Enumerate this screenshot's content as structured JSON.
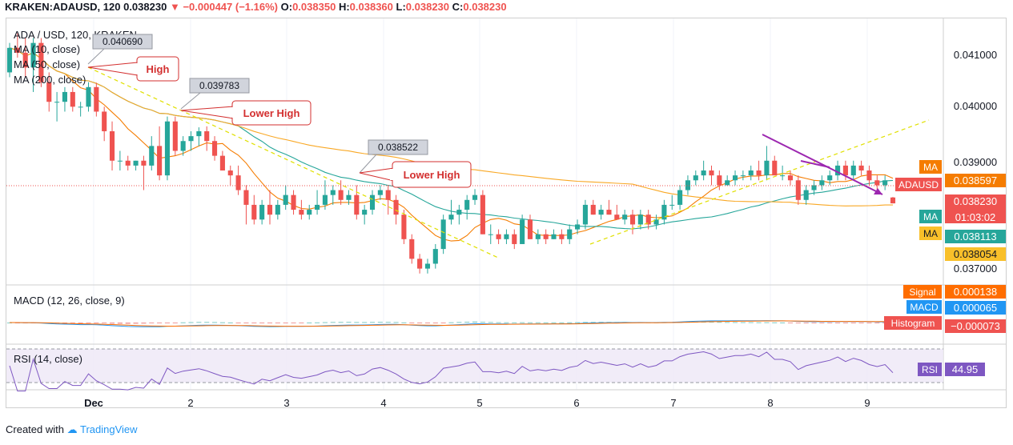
{
  "header": {
    "symbol": "KRAKEN:ADAUSD, 120",
    "price": "0.038230",
    "change": "−0.000447 (−1.16%)",
    "o_label": "O:",
    "o_value": "0.038350",
    "h_label": "H:",
    "h_value": "0.038360",
    "l_label": "L:",
    "l_value": "0.038230",
    "c_label": "C:",
    "c_value": "0.038230"
  },
  "legend": {
    "title": "ADA / USD, 120, KRAKEN",
    "ma1": "MA (10, close)",
    "ma2": "MA (50, close)",
    "ma3": "MA (200, close)"
  },
  "annotations": {
    "price1": "0.040690",
    "price2": "0.039783",
    "price3": "0.038522",
    "high": "High",
    "lower_high_1": "Lower High",
    "lower_high_2": "Lower High"
  },
  "price_axis": {
    "ticks": [
      "0.041000",
      "0.040000",
      "0.039000",
      "0.037000"
    ],
    "ma_tag": "MA",
    "ma_tag_value": "0.038597",
    "symbol_tag": "ADAUSD",
    "symbol_tag_value": "0.038230",
    "countdown": "01:03:02",
    "ma_tag_2": "MA",
    "ma_tag_2_value": "0.038113",
    "ma_tag_3": "MA",
    "ma_tag_3_value": "0.038054"
  },
  "macd": {
    "title": "MACD (12, 26, close, 9)",
    "signal_label": "Signal",
    "signal_value": "0.000138",
    "macd_label": "MACD",
    "macd_value": "0.000065",
    "hist_label": "Histogram",
    "hist_value": "−0.000073"
  },
  "rsi": {
    "title": "RSI (14, close)",
    "label": "RSI",
    "value": "44.95"
  },
  "x_axis": [
    "Dec",
    "2",
    "3",
    "4",
    "5",
    "6",
    "7",
    "8",
    "9"
  ],
  "footer": {
    "created_with": "Created with",
    "brand": "TradingView"
  },
  "colors": {
    "up": "#26a69a",
    "down": "#ef5350",
    "ma_fast": "#f57c00",
    "ma_mid": "#26a69a",
    "ma_slow": "#f9a825",
    "trend": "#e0e000",
    "arrow": "#9c27b0",
    "rsi_line": "#7e57c2",
    "macd_line": "#2196f3",
    "signal_line": "#ff6d00"
  },
  "chart_data": {
    "type": "candlestick",
    "interval": "120",
    "ylim": [
      0.0366,
      0.042
    ],
    "candles": [
      {
        "o": 0.0409,
        "h": 0.0415,
        "l": 0.0408,
        "c": 0.0414
      },
      {
        "o": 0.0414,
        "h": 0.0417,
        "l": 0.0412,
        "c": 0.0413
      },
      {
        "o": 0.0413,
        "h": 0.0416,
        "l": 0.0408,
        "c": 0.041
      },
      {
        "o": 0.041,
        "h": 0.0416,
        "l": 0.0405,
        "c": 0.0415
      },
      {
        "o": 0.0415,
        "h": 0.0416,
        "l": 0.0406,
        "c": 0.0407
      },
      {
        "o": 0.0407,
        "h": 0.0409,
        "l": 0.0401,
        "c": 0.0403
      },
      {
        "o": 0.0403,
        "h": 0.0405,
        "l": 0.0399,
        "c": 0.0403
      },
      {
        "o": 0.0403,
        "h": 0.0406,
        "l": 0.0401,
        "c": 0.0405
      },
      {
        "o": 0.0405,
        "h": 0.0406,
        "l": 0.0401,
        "c": 0.0402
      },
      {
        "o": 0.0402,
        "h": 0.0403,
        "l": 0.04,
        "c": 0.0402
      },
      {
        "o": 0.0402,
        "h": 0.0407,
        "l": 0.0401,
        "c": 0.0406
      },
      {
        "o": 0.0406,
        "h": 0.04069,
        "l": 0.04,
        "c": 0.0401
      },
      {
        "o": 0.0401,
        "h": 0.0402,
        "l": 0.0395,
        "c": 0.0397
      },
      {
        "o": 0.0397,
        "h": 0.0399,
        "l": 0.0389,
        "c": 0.0391
      },
      {
        "o": 0.0391,
        "h": 0.0393,
        "l": 0.0389,
        "c": 0.0391
      },
      {
        "o": 0.0391,
        "h": 0.0392,
        "l": 0.0389,
        "c": 0.039
      },
      {
        "o": 0.039,
        "h": 0.0391,
        "l": 0.0389,
        "c": 0.0391
      },
      {
        "o": 0.0391,
        "h": 0.0392,
        "l": 0.0385,
        "c": 0.039
      },
      {
        "o": 0.039,
        "h": 0.0396,
        "l": 0.0389,
        "c": 0.0394
      },
      {
        "o": 0.0394,
        "h": 0.0398,
        "l": 0.0387,
        "c": 0.0388
      },
      {
        "o": 0.0388,
        "h": 0.04,
        "l": 0.0387,
        "c": 0.0399
      },
      {
        "o": 0.0399,
        "h": 0.04,
        "l": 0.0392,
        "c": 0.0393
      },
      {
        "o": 0.0393,
        "h": 0.0396,
        "l": 0.0392,
        "c": 0.0395
      },
      {
        "o": 0.0395,
        "h": 0.0397,
        "l": 0.0393,
        "c": 0.0396
      },
      {
        "o": 0.0396,
        "h": 0.03978,
        "l": 0.0394,
        "c": 0.0397
      },
      {
        "o": 0.0397,
        "h": 0.0398,
        "l": 0.0393,
        "c": 0.0395
      },
      {
        "o": 0.0395,
        "h": 0.0396,
        "l": 0.0391,
        "c": 0.0392
      },
      {
        "o": 0.0392,
        "h": 0.0393,
        "l": 0.0389,
        "c": 0.0389
      },
      {
        "o": 0.0389,
        "h": 0.039,
        "l": 0.0386,
        "c": 0.0388
      },
      {
        "o": 0.0388,
        "h": 0.039,
        "l": 0.0384,
        "c": 0.0385
      },
      {
        "o": 0.0385,
        "h": 0.0386,
        "l": 0.0378,
        "c": 0.0382
      },
      {
        "o": 0.0382,
        "h": 0.0384,
        "l": 0.0378,
        "c": 0.0379
      },
      {
        "o": 0.0379,
        "h": 0.0383,
        "l": 0.0378,
        "c": 0.0382
      },
      {
        "o": 0.0382,
        "h": 0.0385,
        "l": 0.0378,
        "c": 0.038
      },
      {
        "o": 0.038,
        "h": 0.0383,
        "l": 0.0379,
        "c": 0.0382
      },
      {
        "o": 0.0382,
        "h": 0.0386,
        "l": 0.0381,
        "c": 0.0384
      },
      {
        "o": 0.0384,
        "h": 0.0385,
        "l": 0.038,
        "c": 0.0381
      },
      {
        "o": 0.0381,
        "h": 0.0383,
        "l": 0.0379,
        "c": 0.038
      },
      {
        "o": 0.038,
        "h": 0.0382,
        "l": 0.0379,
        "c": 0.0381
      },
      {
        "o": 0.0381,
        "h": 0.0385,
        "l": 0.038,
        "c": 0.0382
      },
      {
        "o": 0.0382,
        "h": 0.0387,
        "l": 0.0381,
        "c": 0.0384
      },
      {
        "o": 0.0384,
        "h": 0.0386,
        "l": 0.0382,
        "c": 0.0385
      },
      {
        "o": 0.0385,
        "h": 0.0387,
        "l": 0.0382,
        "c": 0.0383
      },
      {
        "o": 0.0383,
        "h": 0.0385,
        "l": 0.0382,
        "c": 0.0384
      },
      {
        "o": 0.0384,
        "h": 0.0386,
        "l": 0.0379,
        "c": 0.038
      },
      {
        "o": 0.038,
        "h": 0.0382,
        "l": 0.0378,
        "c": 0.0381
      },
      {
        "o": 0.0381,
        "h": 0.0385,
        "l": 0.038,
        "c": 0.0384
      },
      {
        "o": 0.0384,
        "h": 0.0386,
        "l": 0.0383,
        "c": 0.0385
      },
      {
        "o": 0.0385,
        "h": 0.0386,
        "l": 0.038,
        "c": 0.0383
      },
      {
        "o": 0.0383,
        "h": 0.0384,
        "l": 0.0378,
        "c": 0.038
      },
      {
        "o": 0.038,
        "h": 0.0381,
        "l": 0.0374,
        "c": 0.0375
      },
      {
        "o": 0.0375,
        "h": 0.0376,
        "l": 0.037,
        "c": 0.0371
      },
      {
        "o": 0.0371,
        "h": 0.0372,
        "l": 0.0368,
        "c": 0.0369
      },
      {
        "o": 0.0369,
        "h": 0.0371,
        "l": 0.0368,
        "c": 0.037
      },
      {
        "o": 0.037,
        "h": 0.0374,
        "l": 0.0369,
        "c": 0.0373
      },
      {
        "o": 0.0373,
        "h": 0.038,
        "l": 0.0372,
        "c": 0.0379
      },
      {
        "o": 0.0379,
        "h": 0.0383,
        "l": 0.0378,
        "c": 0.038
      },
      {
        "o": 0.038,
        "h": 0.0382,
        "l": 0.0378,
        "c": 0.0381
      },
      {
        "o": 0.0381,
        "h": 0.0384,
        "l": 0.0379,
        "c": 0.0383
      },
      {
        "o": 0.0383,
        "h": 0.03852,
        "l": 0.0382,
        "c": 0.0384
      },
      {
        "o": 0.0384,
        "h": 0.0385,
        "l": 0.0376,
        "c": 0.0376
      },
      {
        "o": 0.0376,
        "h": 0.0378,
        "l": 0.0374,
        "c": 0.0376
      },
      {
        "o": 0.0376,
        "h": 0.0377,
        "l": 0.0374,
        "c": 0.0375
      },
      {
        "o": 0.0375,
        "h": 0.0377,
        "l": 0.0374,
        "c": 0.0376
      },
      {
        "o": 0.0376,
        "h": 0.0377,
        "l": 0.0373,
        "c": 0.0374
      },
      {
        "o": 0.0374,
        "h": 0.038,
        "l": 0.0374,
        "c": 0.0379
      },
      {
        "o": 0.0379,
        "h": 0.038,
        "l": 0.0375,
        "c": 0.0375
      },
      {
        "o": 0.0375,
        "h": 0.0377,
        "l": 0.0374,
        "c": 0.0376
      },
      {
        "o": 0.0376,
        "h": 0.0377,
        "l": 0.0374,
        "c": 0.0375
      },
      {
        "o": 0.0375,
        "h": 0.0377,
        "l": 0.0375,
        "c": 0.0376
      },
      {
        "o": 0.0376,
        "h": 0.0377,
        "l": 0.0374,
        "c": 0.0375
      },
      {
        "o": 0.0375,
        "h": 0.0378,
        "l": 0.0374,
        "c": 0.0377
      },
      {
        "o": 0.0377,
        "h": 0.0379,
        "l": 0.0376,
        "c": 0.0378
      },
      {
        "o": 0.0378,
        "h": 0.0383,
        "l": 0.0377,
        "c": 0.0382
      },
      {
        "o": 0.0382,
        "h": 0.0383,
        "l": 0.038,
        "c": 0.038
      },
      {
        "o": 0.038,
        "h": 0.0382,
        "l": 0.0379,
        "c": 0.0381
      },
      {
        "o": 0.0381,
        "h": 0.0383,
        "l": 0.038,
        "c": 0.038
      },
      {
        "o": 0.038,
        "h": 0.0382,
        "l": 0.0379,
        "c": 0.0379
      },
      {
        "o": 0.0379,
        "h": 0.0381,
        "l": 0.0378,
        "c": 0.038
      },
      {
        "o": 0.038,
        "h": 0.0381,
        "l": 0.0376,
        "c": 0.0378
      },
      {
        "o": 0.0378,
        "h": 0.0381,
        "l": 0.0377,
        "c": 0.038
      },
      {
        "o": 0.038,
        "h": 0.0381,
        "l": 0.0377,
        "c": 0.0378
      },
      {
        "o": 0.0378,
        "h": 0.038,
        "l": 0.0377,
        "c": 0.0379
      },
      {
        "o": 0.0379,
        "h": 0.0383,
        "l": 0.0378,
        "c": 0.0382
      },
      {
        "o": 0.0382,
        "h": 0.0384,
        "l": 0.0381,
        "c": 0.0382
      },
      {
        "o": 0.0382,
        "h": 0.0386,
        "l": 0.0381,
        "c": 0.0385
      },
      {
        "o": 0.0385,
        "h": 0.0388,
        "l": 0.0384,
        "c": 0.0387
      },
      {
        "o": 0.0387,
        "h": 0.0389,
        "l": 0.0386,
        "c": 0.0388
      },
      {
        "o": 0.0388,
        "h": 0.0391,
        "l": 0.0387,
        "c": 0.0389
      },
      {
        "o": 0.0389,
        "h": 0.039,
        "l": 0.0386,
        "c": 0.0388
      },
      {
        "o": 0.0388,
        "h": 0.0389,
        "l": 0.0385,
        "c": 0.0386
      },
      {
        "o": 0.0386,
        "h": 0.0388,
        "l": 0.0386,
        "c": 0.0387
      },
      {
        "o": 0.0387,
        "h": 0.0389,
        "l": 0.0386,
        "c": 0.0388
      },
      {
        "o": 0.0388,
        "h": 0.0389,
        "l": 0.0387,
        "c": 0.0388
      },
      {
        "o": 0.0388,
        "h": 0.039,
        "l": 0.0387,
        "c": 0.0389
      },
      {
        "o": 0.0389,
        "h": 0.0391,
        "l": 0.0387,
        "c": 0.0388
      },
      {
        "o": 0.0388,
        "h": 0.0394,
        "l": 0.0387,
        "c": 0.0391
      },
      {
        "o": 0.0391,
        "h": 0.0392,
        "l": 0.0388,
        "c": 0.0388
      },
      {
        "o": 0.0388,
        "h": 0.039,
        "l": 0.0387,
        "c": 0.0388
      },
      {
        "o": 0.0388,
        "h": 0.0389,
        "l": 0.0386,
        "c": 0.0387
      },
      {
        "o": 0.0387,
        "h": 0.0388,
        "l": 0.0382,
        "c": 0.0383
      },
      {
        "o": 0.0383,
        "h": 0.0386,
        "l": 0.0382,
        "c": 0.0385
      },
      {
        "o": 0.0385,
        "h": 0.0387,
        "l": 0.0384,
        "c": 0.0386
      },
      {
        "o": 0.0386,
        "h": 0.0388,
        "l": 0.0385,
        "c": 0.0387
      },
      {
        "o": 0.0387,
        "h": 0.0389,
        "l": 0.0386,
        "c": 0.0388
      },
      {
        "o": 0.0388,
        "h": 0.0391,
        "l": 0.0387,
        "c": 0.039
      },
      {
        "o": 0.039,
        "h": 0.0391,
        "l": 0.0387,
        "c": 0.0388
      },
      {
        "o": 0.0388,
        "h": 0.0391,
        "l": 0.0387,
        "c": 0.039
      },
      {
        "o": 0.039,
        "h": 0.0391,
        "l": 0.0388,
        "c": 0.0389
      },
      {
        "o": 0.0389,
        "h": 0.039,
        "l": 0.0386,
        "c": 0.0387
      },
      {
        "o": 0.0387,
        "h": 0.0388,
        "l": 0.0385,
        "c": 0.0386
      },
      {
        "o": 0.0386,
        "h": 0.0388,
        "l": 0.0385,
        "c": 0.0387
      },
      {
        "o": 0.03835,
        "h": 0.03836,
        "l": 0.03823,
        "c": 0.03823
      }
    ]
  }
}
